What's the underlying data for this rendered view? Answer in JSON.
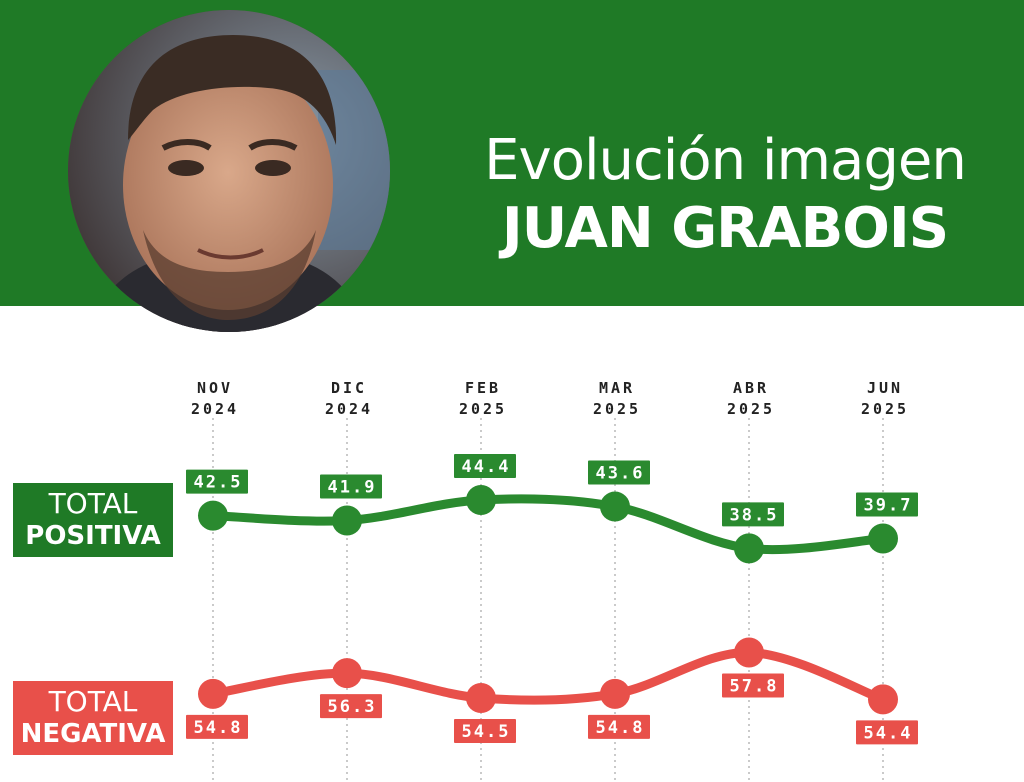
{
  "header": {
    "title_line1": "Evolución imagen",
    "title_line2": "JUAN GRABOIS",
    "background_color": "#1f7a26"
  },
  "labels": {
    "positive_line1": "TOTAL",
    "positive_line2": "POSITIVA",
    "negative_line1": "TOTAL",
    "negative_line2": "NEGATIVA"
  },
  "chart_data": {
    "type": "line",
    "title": "Evolución imagen JUAN GRABOIS",
    "categories": [
      [
        "NOV",
        "2024"
      ],
      [
        "DIC",
        "2024"
      ],
      [
        "FEB",
        "2025"
      ],
      [
        "MAR",
        "2025"
      ],
      [
        "ABR",
        "2025"
      ],
      [
        "JUN",
        "2025"
      ]
    ],
    "series": [
      {
        "name": "TOTAL POSITIVA",
        "color": "#2a8a2f",
        "values": [
          42.5,
          41.9,
          44.4,
          43.6,
          38.5,
          39.7
        ],
        "value_labels": [
          "42.5",
          "41.9",
          "44.4",
          "43.6",
          "38.5",
          "39.7"
        ]
      },
      {
        "name": "TOTAL NEGATIVA",
        "color": "#e8504a",
        "values": [
          54.8,
          56.3,
          54.5,
          54.8,
          57.8,
          54.4
        ],
        "value_labels": [
          "54.8",
          "56.3",
          "54.5",
          "54.8",
          "57.8",
          "54.4"
        ]
      }
    ],
    "xlabel": "",
    "ylabel": "",
    "grid": "vertical dotted",
    "legend": "left"
  }
}
